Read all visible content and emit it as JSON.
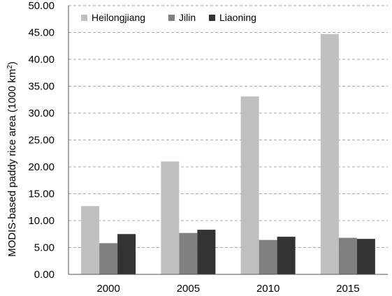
{
  "chart_data": {
    "type": "bar",
    "categories": [
      "2000",
      "2005",
      "2010",
      "2015"
    ],
    "series": [
      {
        "name": "Heilongjiang",
        "values": [
          12.7,
          21.0,
          33.1,
          44.7
        ],
        "color": "#c0c0c0"
      },
      {
        "name": "Jilin",
        "values": [
          5.8,
          7.7,
          6.4,
          6.8
        ],
        "color": "#808080"
      },
      {
        "name": "Liaoning",
        "values": [
          7.5,
          8.3,
          7.0,
          6.6
        ],
        "color": "#333333"
      }
    ],
    "ylabel_prefix": "MODIS-based paddy rice area (1000 km",
    "ylabel_sup": "2",
    "ylabel_suffix": ")",
    "xlabel": "",
    "ylim": [
      0,
      50
    ],
    "y_ticks": [
      "0.00",
      "5.00",
      "10.00",
      "15.00",
      "20.00",
      "25.00",
      "30.00",
      "35.00",
      "40.00",
      "45.00",
      "50.00"
    ],
    "grid": true,
    "legend_position": "top-left"
  }
}
